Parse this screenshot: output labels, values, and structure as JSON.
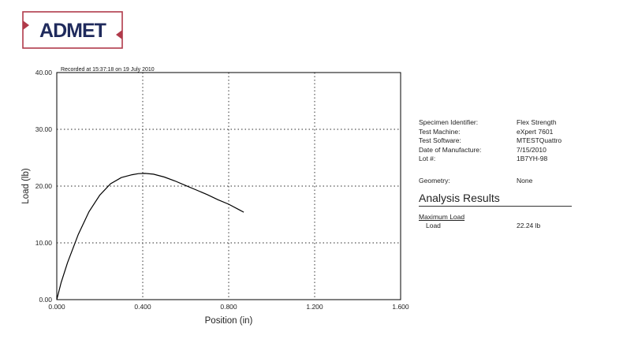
{
  "logo": {
    "text": "ADMET"
  },
  "chart_data": {
    "type": "line",
    "annotation": "Recorded at 15:37:18 on 19 July 2010",
    "xlabel": "Position (in)",
    "ylabel": "Load (lb)",
    "xlim": [
      0,
      1.6
    ],
    "ylim": [
      0,
      40
    ],
    "xticks": [
      "0.000",
      "0.400",
      "0.800",
      "1.200",
      "1.600"
    ],
    "yticks": [
      "0.00",
      "10.00",
      "20.00",
      "30.00",
      "40.00"
    ],
    "grid": true,
    "series": [
      {
        "color": "#000000",
        "x": [
          0.0,
          0.02,
          0.05,
          0.1,
          0.15,
          0.2,
          0.25,
          0.3,
          0.35,
          0.38,
          0.41,
          0.45,
          0.5,
          0.55,
          0.6,
          0.65,
          0.7,
          0.75,
          0.8,
          0.85,
          0.87
        ],
        "y": [
          0.0,
          3.0,
          6.5,
          11.5,
          15.5,
          18.4,
          20.4,
          21.5,
          22.0,
          22.2,
          22.24,
          22.1,
          21.6,
          20.9,
          20.1,
          19.3,
          18.5,
          17.6,
          16.8,
          15.8,
          15.4
        ]
      }
    ]
  },
  "info": {
    "rows": [
      {
        "label": "Specimen Identifier:",
        "value": "Flex Strength"
      },
      {
        "label": "Test Machine:",
        "value": "eXpert 7601"
      },
      {
        "label": "Test Software:",
        "value": "MTESTQuattro"
      },
      {
        "label": "Date of Manufacture:",
        "value": "7/15/2010"
      },
      {
        "label": "Lot #:",
        "value": "1B7YH-98"
      }
    ],
    "geometry": {
      "label": "Geometry:",
      "value": "None"
    }
  },
  "analysis": {
    "title": "Analysis Results",
    "subhead": "Maximum Load",
    "row": {
      "label": "Load",
      "value": "22.24 lb"
    }
  },
  "colors": {
    "logo_border": "#b03a4a",
    "logo_text": "#1f2a5c",
    "grid": "#555555",
    "line": "#000000"
  }
}
